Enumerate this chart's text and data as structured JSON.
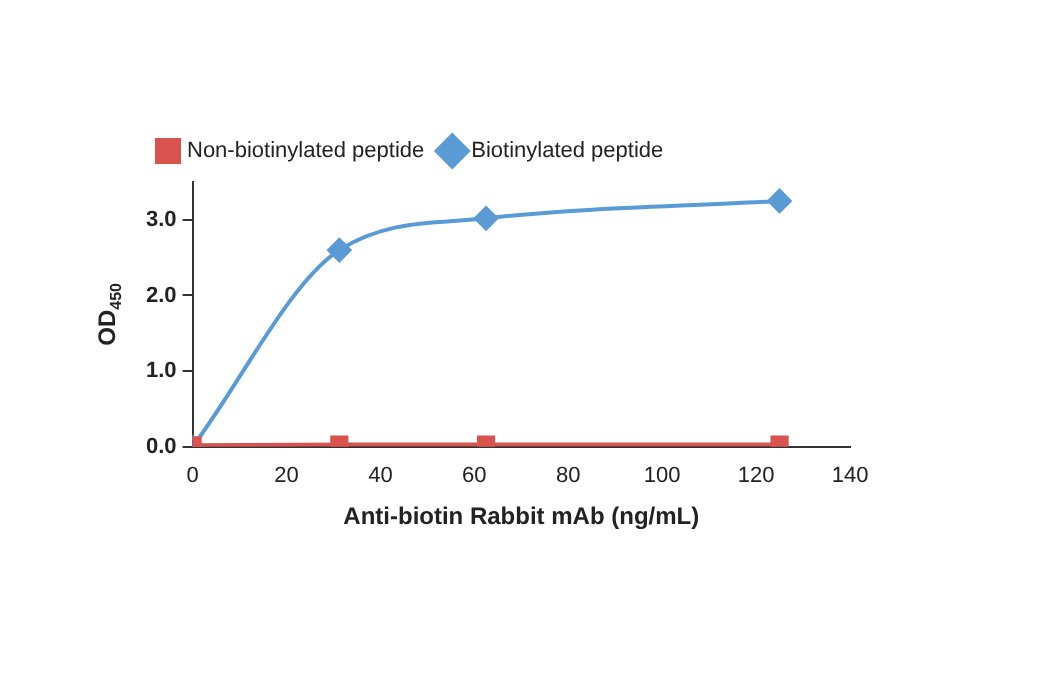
{
  "chart_data": {
    "type": "line",
    "xlabel": "Anti-biotin Rabbit mAb (ng/mL)",
    "ylabel": "OD$_{450}$",
    "x": [
      0,
      31.25,
      62.5,
      125
    ],
    "series": [
      {
        "name": "Biotinylated peptide",
        "color": "#5b9bd5",
        "values": [
          0,
          2.6,
          3.02,
          3.25
        ],
        "marker": "diamond"
      },
      {
        "name": "Non-biotinylated peptide",
        "color": "#d9534f",
        "values": [
          0.02,
          0.03,
          0.03,
          0.03
        ],
        "marker": "square"
      }
    ],
    "xlim": [
      0,
      140
    ],
    "xticks": [
      0,
      20,
      40,
      60,
      80,
      100,
      120,
      140
    ],
    "ylim": [
      0,
      3.5
    ],
    "yticks": [
      {
        "value": 0,
        "label": "0.0"
      },
      {
        "value": 1,
        "label": "1.0"
      },
      {
        "value": 2,
        "label": "2.0"
      },
      {
        "value": 3,
        "label": "3.0"
      }
    ],
    "grid": false,
    "legend": "top left",
    "line_style": "solid"
  }
}
